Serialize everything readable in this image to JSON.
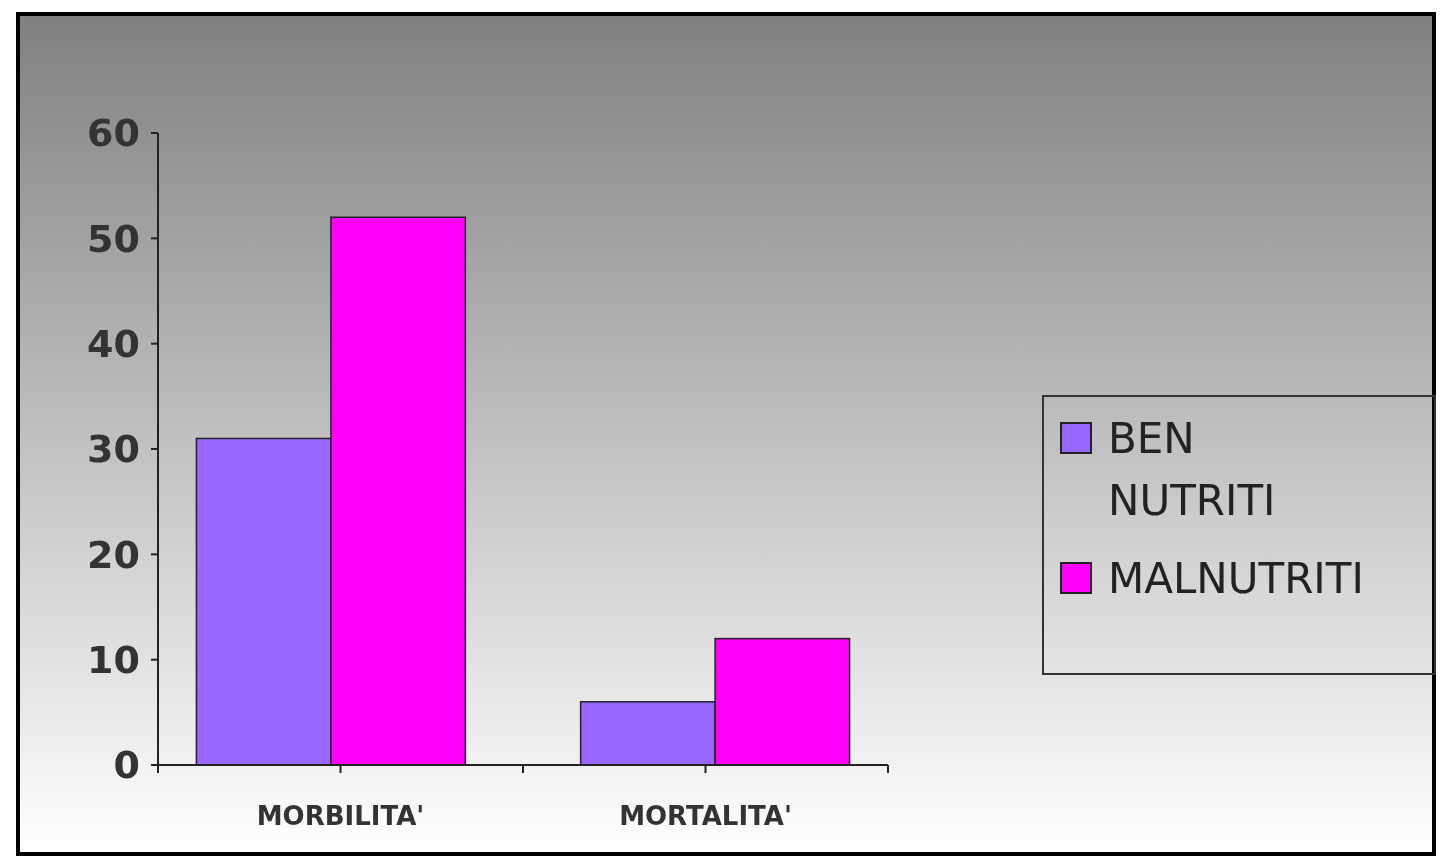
{
  "chart_data": {
    "type": "bar",
    "categories": [
      "MORBILITA'",
      "MORTALITA'"
    ],
    "series": [
      {
        "name": "BEN NUTRITI",
        "color": "#9966ff",
        "values": [
          31,
          6
        ]
      },
      {
        "name": "MALNUTRITI",
        "color": "#ff00ff",
        "values": [
          52,
          12
        ]
      }
    ],
    "ylim": [
      0,
      60
    ],
    "yticks": [
      0,
      10,
      20,
      30,
      40,
      50,
      60
    ],
    "legend": "right"
  }
}
